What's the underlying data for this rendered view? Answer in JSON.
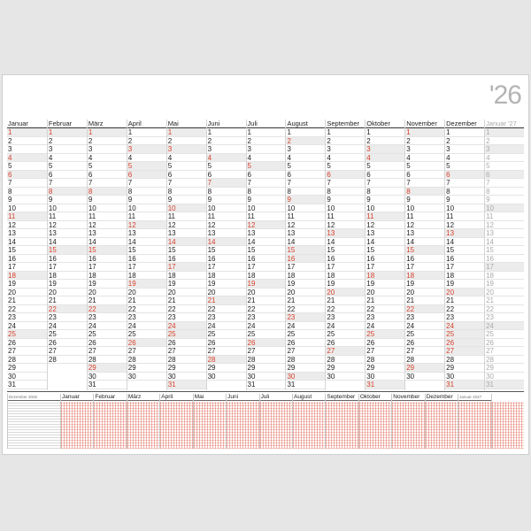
{
  "year_mark": "'26",
  "months": [
    {
      "name": "Januar",
      "days": 31,
      "holidays": [
        1,
        4,
        6,
        11,
        18,
        25
      ]
    },
    {
      "name": "Februar",
      "days": 28,
      "holidays": [
        1,
        8,
        15,
        22
      ]
    },
    {
      "name": "März",
      "days": 31,
      "holidays": [
        1,
        8,
        15,
        22,
        29
      ]
    },
    {
      "name": "April",
      "days": 30,
      "holidays": [
        3,
        5,
        6,
        12,
        19,
        26
      ]
    },
    {
      "name": "Mai",
      "days": 31,
      "holidays": [
        1,
        3,
        10,
        14,
        17,
        24,
        25,
        31
      ]
    },
    {
      "name": "Juni",
      "days": 30,
      "holidays": [
        4,
        7,
        14,
        21,
        28
      ]
    },
    {
      "name": "Juli",
      "days": 31,
      "holidays": [
        5,
        12,
        19,
        26
      ]
    },
    {
      "name": "August",
      "days": 31,
      "holidays": [
        2,
        9,
        15,
        16,
        23,
        30
      ]
    },
    {
      "name": "September",
      "days": 30,
      "holidays": [
        6,
        13,
        20,
        27
      ]
    },
    {
      "name": "Oktober",
      "days": 31,
      "holidays": [
        3,
        4,
        11,
        18,
        25,
        31
      ]
    },
    {
      "name": "November",
      "days": 30,
      "holidays": [
        1,
        8,
        15,
        18,
        22,
        29
      ]
    },
    {
      "name": "Dezember",
      "days": 31,
      "holidays": [
        6,
        13,
        20,
        24,
        25,
        26,
        27,
        31
      ]
    },
    {
      "name": "Januar '27",
      "days": 31,
      "holidays": [
        1,
        3,
        6,
        10,
        17,
        24,
        31
      ],
      "next_year": true
    }
  ],
  "planner": {
    "header_first": "Dezember 2025",
    "months": [
      "Januar",
      "Februar",
      "März",
      "April",
      "Mai",
      "Juni",
      "Juli",
      "August",
      "September",
      "Oktober",
      "November",
      "Dezember"
    ],
    "header_last": "Januar 2027"
  }
}
